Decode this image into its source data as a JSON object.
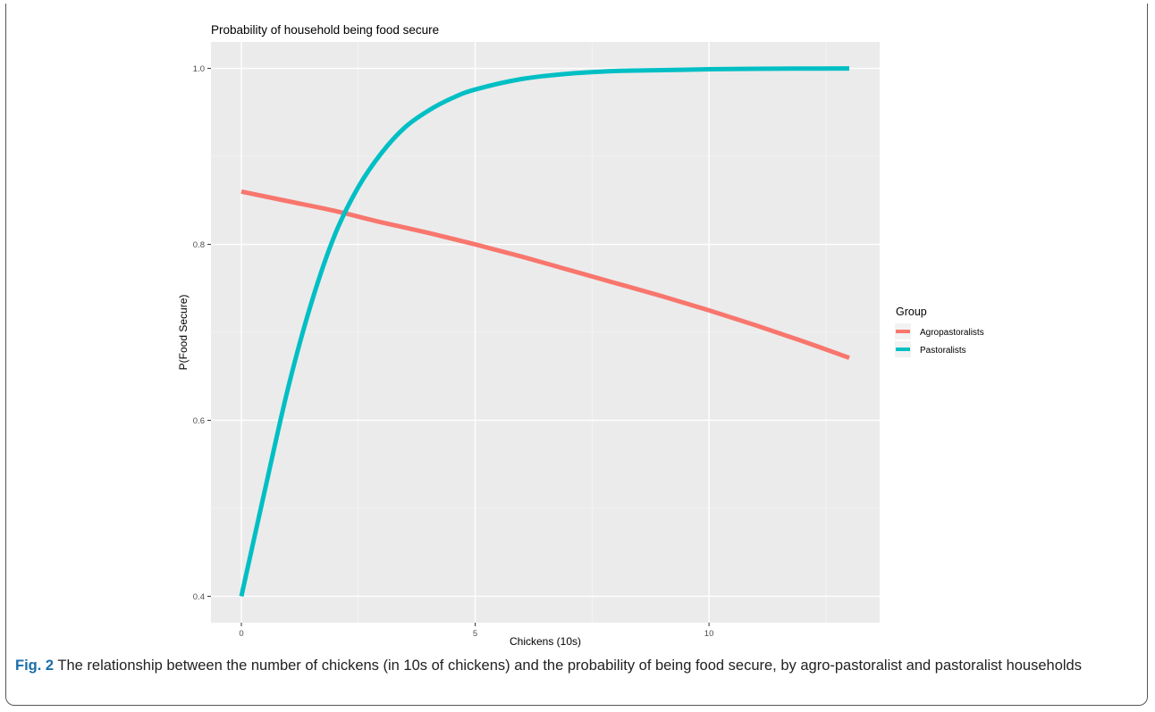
{
  "chart_data": {
    "type": "line",
    "title": "Probability of household being food secure",
    "xlabel": "Chickens (10s)",
    "ylabel": "P(Food Secure)",
    "xlim": [
      -0.65,
      13.65
    ],
    "ylim": [
      0.37,
      1.03
    ],
    "x_ticks": [
      0,
      5,
      10
    ],
    "x_tick_labels": [
      "0",
      "5",
      "10"
    ],
    "y_ticks": [
      0.4,
      0.6,
      0.8,
      1.0
    ],
    "y_tick_labels": [
      "0.4",
      "0.6",
      "0.8",
      "1.0"
    ],
    "grid": true,
    "legend_position": "right",
    "legend_title": "Group",
    "series": [
      {
        "name": "Agropastoralists",
        "color": "#f8766d",
        "x": [
          0,
          1,
          2,
          3,
          4,
          5,
          6,
          7,
          8,
          9,
          10,
          11,
          12,
          13
        ],
        "y": [
          0.86,
          0.849,
          0.838,
          0.825,
          0.813,
          0.8,
          0.786,
          0.771,
          0.756,
          0.741,
          0.725,
          0.708,
          0.69,
          0.671
        ]
      },
      {
        "name": "Pastoralists",
        "color": "#00bfc4",
        "x": [
          0,
          0.5,
          1,
          1.5,
          2,
          2.5,
          3,
          3.5,
          4,
          4.5,
          5,
          6,
          7,
          8,
          9,
          10,
          11,
          12,
          13
        ],
        "y": [
          0.4,
          0.52,
          0.637,
          0.734,
          0.811,
          0.865,
          0.904,
          0.933,
          0.952,
          0.966,
          0.976,
          0.988,
          0.994,
          0.997,
          0.998,
          0.999,
          0.9995,
          0.9998,
          0.9999
        ]
      }
    ]
  },
  "caption": {
    "label": "Fig. 2",
    "text": " The relationship between the number of chickens (in 10s of chickens) and the probability of being food secure, by agro-pastoralist and pastoralist households"
  }
}
